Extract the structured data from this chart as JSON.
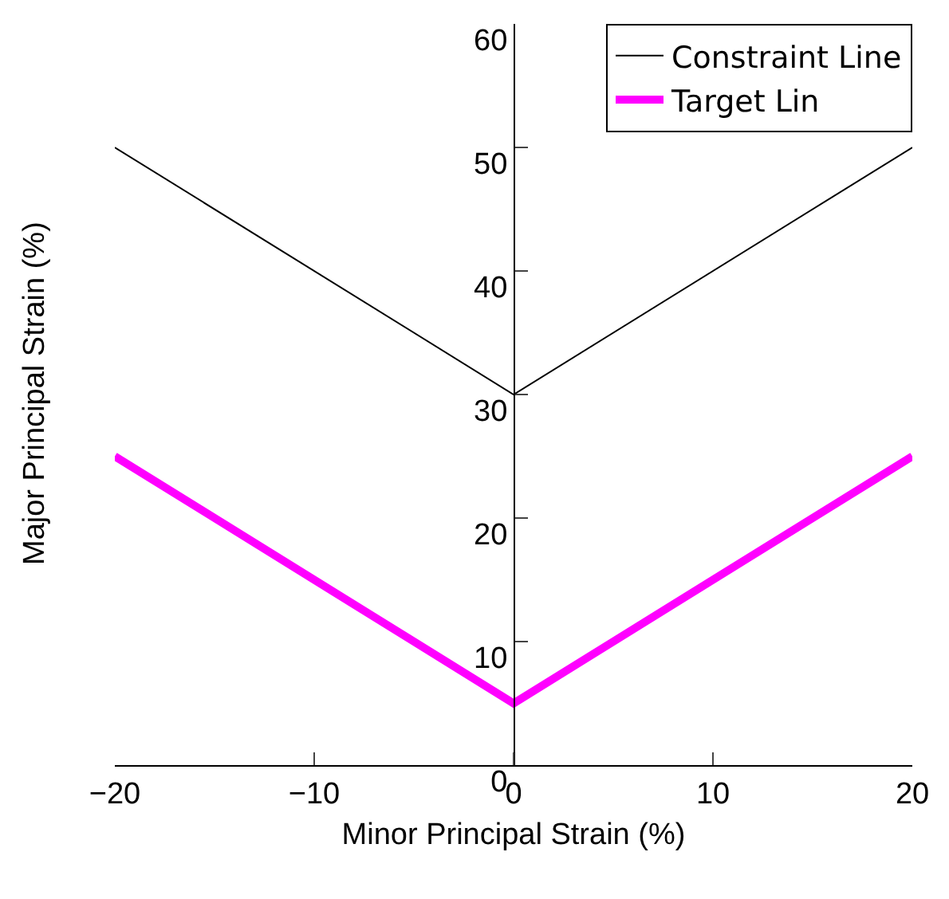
{
  "chart_data": {
    "type": "line",
    "xlabel": "Minor Principal Strain (%)",
    "ylabel": "Major Principal Strain (%)",
    "x": [
      -20,
      0,
      20
    ],
    "series": [
      {
        "name": "Constraint Line",
        "color": "#000000",
        "values": [
          50,
          30,
          50
        ]
      },
      {
        "name": "Target Lin",
        "color": "#ff00ff",
        "values": [
          25,
          5,
          25
        ]
      }
    ],
    "xlim": [
      -20,
      20
    ],
    "xticks": [
      {
        "value": -20,
        "label": "−20"
      },
      {
        "value": -10,
        "label": "−10"
      },
      0,
      10,
      20
    ],
    "ylim": [
      0,
      60
    ],
    "yticks": [
      0,
      10,
      20,
      30,
      40,
      50,
      60
    ],
    "grid": false,
    "legend": "top right",
    "marker": "none",
    "line_style": "solid"
  }
}
